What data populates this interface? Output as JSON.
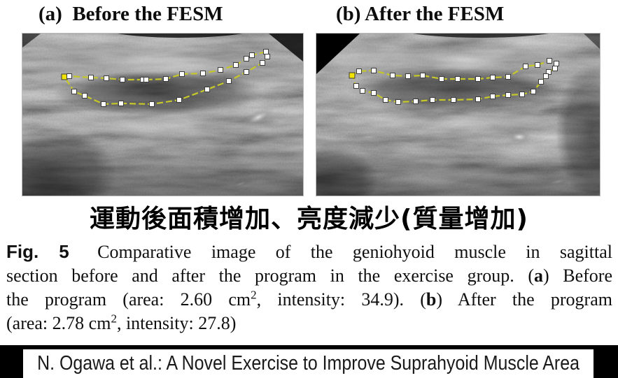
{
  "panels": [
    {
      "id": "a",
      "title": "(a)  Before the FESM",
      "outline": {
        "stroke": "#c6c82a",
        "start_marker_color": "#f2e300",
        "marker_color": "#ffffff",
        "marker_border": "#3c3c3c",
        "points": [
          [
            60,
            62
          ],
          [
            67,
            61
          ],
          [
            98,
            63
          ],
          [
            120,
            64
          ],
          [
            143,
            66
          ],
          [
            172,
            66
          ],
          [
            177,
            66
          ],
          [
            205,
            65
          ],
          [
            228,
            58
          ],
          [
            258,
            57
          ],
          [
            283,
            52
          ],
          [
            305,
            45
          ],
          [
            320,
            36
          ],
          [
            328,
            31
          ],
          [
            348,
            26
          ],
          [
            350,
            33
          ],
          [
            343,
            42
          ],
          [
            320,
            55
          ],
          [
            295,
            68
          ],
          [
            264,
            80
          ],
          [
            224,
            95
          ],
          [
            185,
            101
          ],
          [
            141,
            100
          ],
          [
            116,
            101
          ],
          [
            89,
            89
          ],
          [
            74,
            83
          ]
        ]
      }
    },
    {
      "id": "b",
      "title": "(b) After the FESM",
      "outline": {
        "stroke": "#c6c82a",
        "start_marker_color": "#f2e300",
        "marker_color": "#ffffff",
        "marker_border": "#3c3c3c",
        "points": [
          [
            51,
            60
          ],
          [
            61,
            54
          ],
          [
            82,
            53
          ],
          [
            109,
            60
          ],
          [
            131,
            61
          ],
          [
            152,
            60
          ],
          [
            179,
            65
          ],
          [
            202,
            65
          ],
          [
            231,
            65
          ],
          [
            252,
            63
          ],
          [
            274,
            62
          ],
          [
            299,
            47
          ],
          [
            316,
            45
          ],
          [
            333,
            39
          ],
          [
            343,
            43
          ],
          [
            341,
            50
          ],
          [
            332,
            55
          ],
          [
            328,
            61
          ],
          [
            321,
            69
          ],
          [
            310,
            83
          ],
          [
            294,
            87
          ],
          [
            274,
            88
          ],
          [
            252,
            90
          ],
          [
            231,
            94
          ],
          [
            196,
            95
          ],
          [
            166,
            95
          ],
          [
            142,
            97
          ],
          [
            117,
            98
          ],
          [
            99,
            95
          ],
          [
            82,
            85
          ],
          [
            66,
            82
          ],
          [
            57,
            75
          ]
        ]
      }
    }
  ],
  "subtitle_cjk": "運動後面積增加、亮度減少(質量增加)",
  "caption": {
    "lines": [
      {
        "justify": true,
        "segments": [
          {
            "text": "Fig. 5",
            "style": "figlabel"
          },
          {
            "text": " Comparative image of the geniohyoid muscle in sagittal",
            "style": "normal"
          }
        ]
      },
      {
        "justify": true,
        "segments": [
          {
            "text": "section before and after the program in the exercise group. (",
            "style": "normal"
          },
          {
            "text": "a",
            "style": "bold"
          },
          {
            "text": ") Before",
            "style": "normal"
          }
        ]
      },
      {
        "justify": true,
        "segments": [
          {
            "text": "the program (area: 2.60 cm",
            "style": "normal"
          },
          {
            "text": "2",
            "style": "sup"
          },
          {
            "text": ", intensity: 34.9). (",
            "style": "normal"
          },
          {
            "text": "b",
            "style": "bold"
          },
          {
            "text": ") After the program",
            "style": "normal"
          }
        ]
      },
      {
        "justify": false,
        "segments": [
          {
            "text": "(area: 2.78 cm",
            "style": "normal"
          },
          {
            "text": "2",
            "style": "sup"
          },
          {
            "text": ", intensity: 27.8)",
            "style": "normal"
          }
        ]
      }
    ]
  },
  "footer": {
    "text": "N. Ogawa et al.: A Novel Exercise to Improve Suprahyoid Muscle Area",
    "bar_color": "#000000",
    "box_color": "#ffffff"
  }
}
